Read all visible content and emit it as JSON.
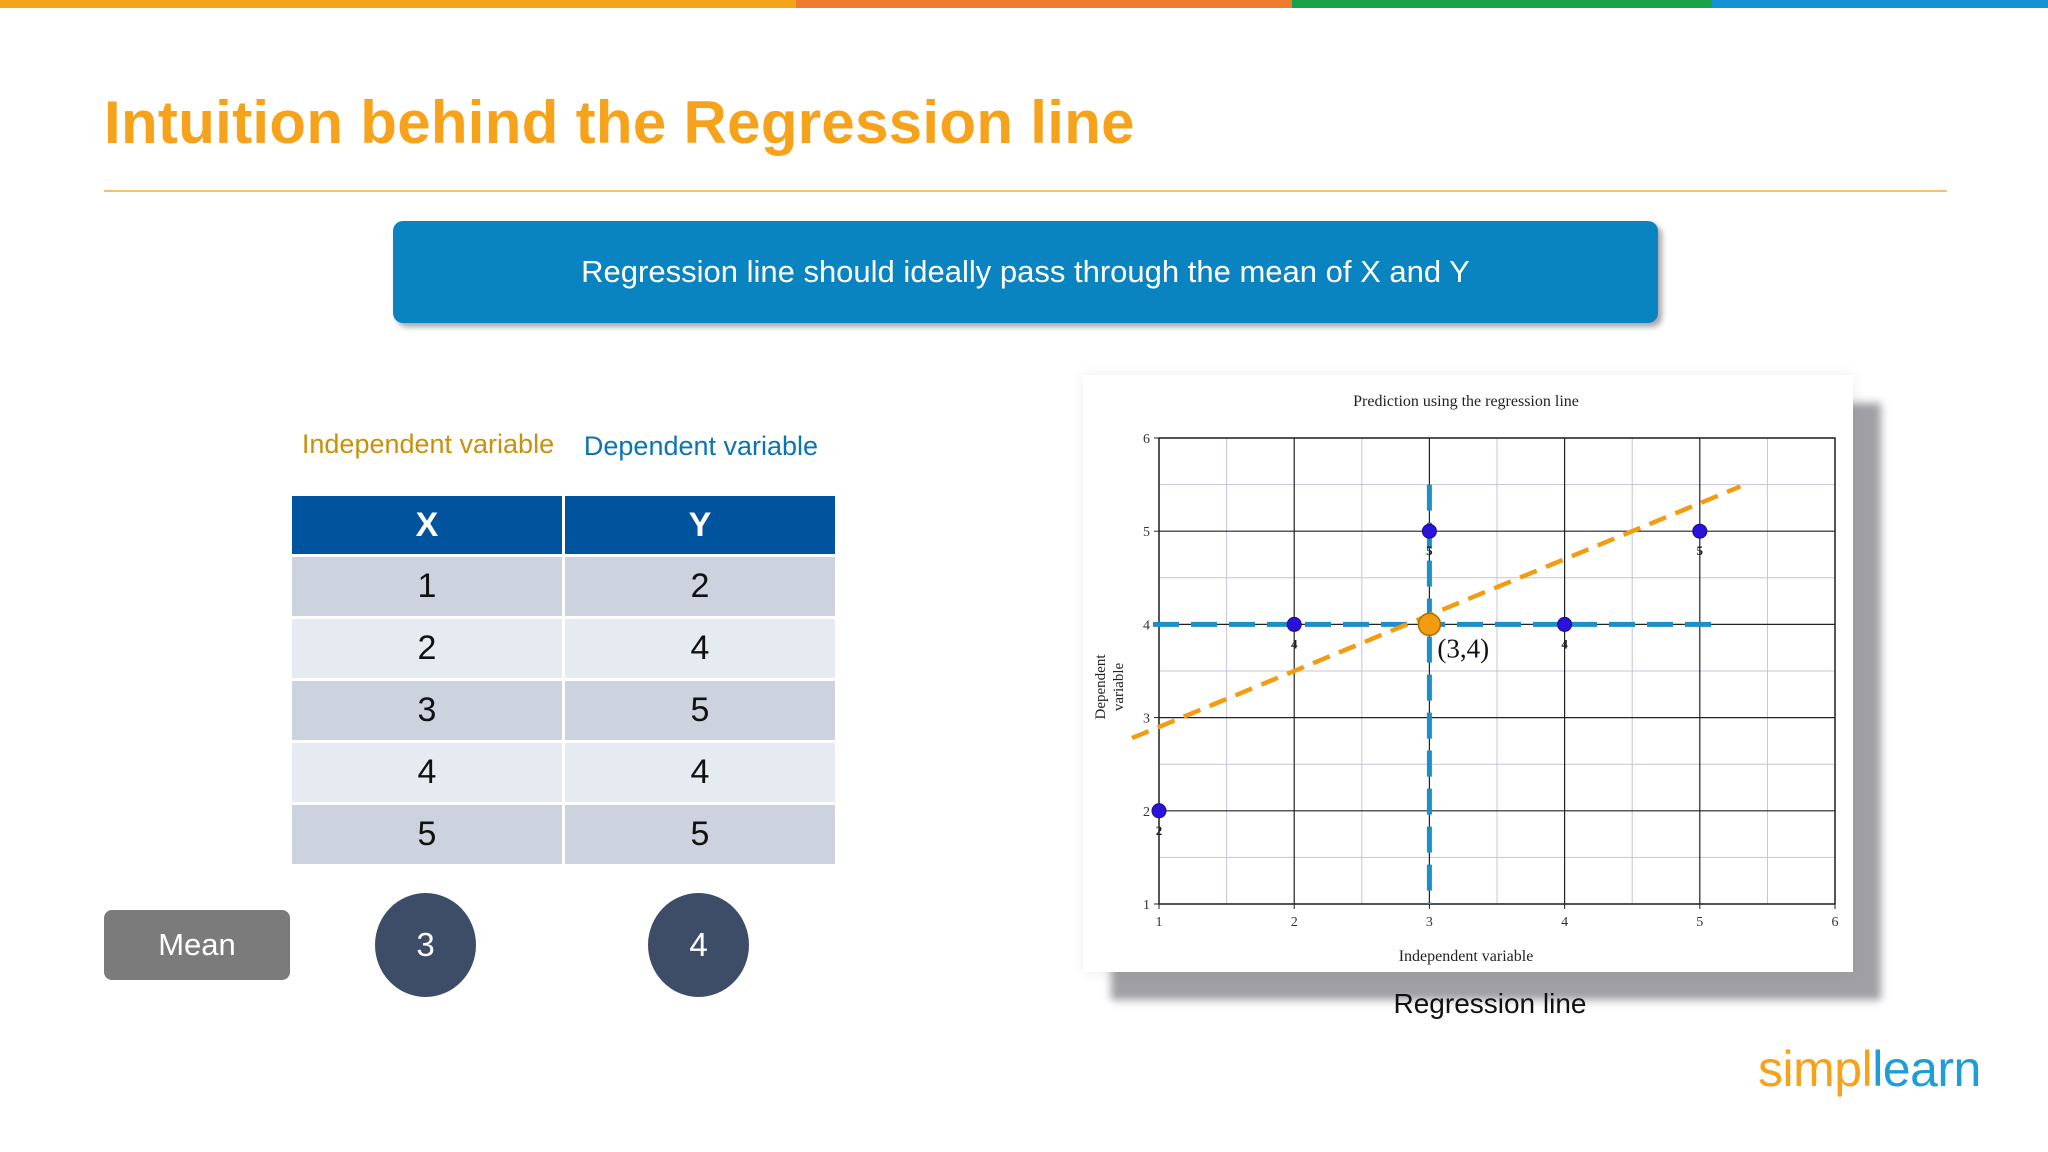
{
  "colors": {
    "title": "#f7a21b",
    "banner": "#0a84c0",
    "table_header": "#00549e",
    "mean_button": "#7b7b7b",
    "mean_circle": "#3e4d67",
    "regression_line": "#f39c12",
    "mean_guides": "#1a8fc8",
    "points": "#2a12d8"
  },
  "slide": {
    "title": "Intuition behind the Regression line",
    "banner": "Regression line should ideally pass through the mean of X and Y"
  },
  "table": {
    "label_x": "Independent variable",
    "label_y": "Dependent variable",
    "header_x": "X",
    "header_y": "Y",
    "rows": [
      {
        "x": "1",
        "y": "2"
      },
      {
        "x": "2",
        "y": "4"
      },
      {
        "x": "3",
        "y": "5"
      },
      {
        "x": "4",
        "y": "4"
      },
      {
        "x": "5",
        "y": "5"
      }
    ],
    "mean_label": "Mean",
    "mean_x": "3",
    "mean_y": "4"
  },
  "chart_caption": "Regression line",
  "logo": {
    "part1": "simpl",
    "part2": "learn"
  },
  "chart_data": {
    "type": "scatter",
    "title": "Prediction using the regression line",
    "xlabel": "Independent variable",
    "ylabel": "Dependent variable",
    "xlim": [
      1,
      6
    ],
    "ylim": [
      1,
      6
    ],
    "x_ticks": [
      1,
      2,
      3,
      4,
      5,
      6
    ],
    "y_ticks": [
      1,
      2,
      3,
      4,
      5,
      6
    ],
    "grid": true,
    "points": [
      {
        "x": 1,
        "y": 2,
        "label": "2"
      },
      {
        "x": 2,
        "y": 4,
        "label": "4"
      },
      {
        "x": 3,
        "y": 5,
        "label": "5"
      },
      {
        "x": 4,
        "y": 4,
        "label": "4"
      },
      {
        "x": 5,
        "y": 5,
        "label": "5"
      }
    ],
    "mean_point": {
      "x": 3,
      "y": 4,
      "label": "(3,4)"
    },
    "regression_line": {
      "x": [
        0.8,
        5.3
      ],
      "y": [
        2.78,
        5.48
      ]
    },
    "mean_guides": {
      "x_mean": 3,
      "y_mean": 4
    }
  }
}
